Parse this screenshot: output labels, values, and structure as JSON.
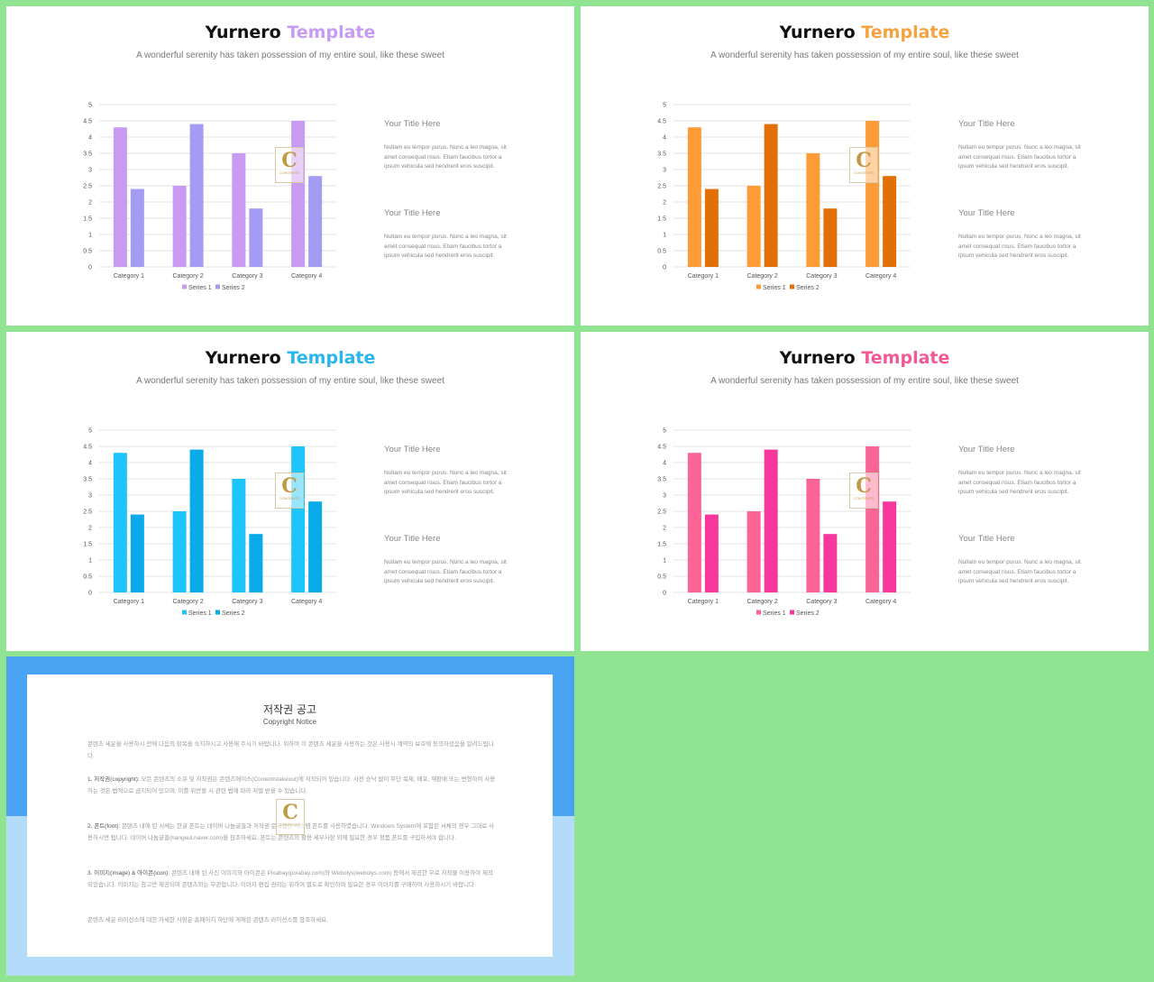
{
  "slides": [
    {
      "title_part1": "Yurnero",
      "title_part2": "Template",
      "accent": "#c99af2",
      "subtitle": "A wonderful serenity has taken possession of my entire soul, like these sweet",
      "series_colors": [
        "#c99af2",
        "#a49cf2"
      ],
      "side": [
        {
          "title": "Your Title Here",
          "body": "Nullam eu tempor purus. Nunc a leo magna, sit amet consequat risus. Etiam faucibus tortor a ipsum vehicula sed hendrerit eros suscipit."
        },
        {
          "title": "Your Title Here",
          "body": "Nullam eu tempor purus. Nunc a leo magna, sit amet consequat risus. Etiam faucibus tortor a ipsum vehicula sed hendrerit eros suscipit."
        }
      ]
    },
    {
      "title_part1": "Yurnero",
      "title_part2": "Template",
      "accent": "#f5a340",
      "subtitle": "A wonderful serenity has taken possession of my entire soul, like these sweet",
      "series_colors": [
        "#fd9c37",
        "#e27006"
      ],
      "side": [
        {
          "title": "Your Title Here",
          "body": "Nullam eu tempor purus. Nunc a leo magna, sit amet consequat risus. Etiam faucibus tortor a ipsum vehicula sed hendrerit eros suscipit."
        },
        {
          "title": "Your Title Here",
          "body": "Nullam eu tempor purus. Nunc a leo magna, sit amet consequat risus. Etiam faucibus tortor a ipsum vehicula sed hendrerit eros suscipit."
        }
      ]
    },
    {
      "title_part1": "Yurnero",
      "title_part2": "Template",
      "accent": "#29b6ec",
      "subtitle": "A wonderful serenity has taken possession of my entire soul, like these sweet",
      "series_colors": [
        "#1ec5fb",
        "#08aaea"
      ],
      "side": [
        {
          "title": "Your Title Here",
          "body": "Nullam eu tempor purus. Nunc a leo magna, sit amet consequat risus. Etiam faucibus tortor a ipsum vehicula sed hendrerit eros suscipit."
        },
        {
          "title": "Your Title Here",
          "body": "Nullam eu tempor purus. Nunc a leo magna, sit amet consequat risus. Etiam faucibus tortor a ipsum vehicula sed hendrerit eros suscipit."
        }
      ]
    },
    {
      "title_part1": "Yurnero",
      "title_part2": "Template",
      "accent": "#f25a97",
      "subtitle": "A wonderful serenity has taken possession of my entire soul, like these sweet",
      "series_colors": [
        "#fa6596",
        "#f8379c"
      ],
      "side": [
        {
          "title": "Your Title Here",
          "body": "Nullam eu tempor purus. Nunc a leo magna, sit amet consequat risus. Etiam faucibus tortor a ipsum vehicula sed hendrerit eros suscipit."
        },
        {
          "title": "Your Title Here",
          "body": "Nullam eu tempor purus. Nunc a leo magna, sit amet consequat risus. Etiam faucibus tortor a ipsum vehicula sed hendrerit eros suscipit."
        }
      ]
    }
  ],
  "watermark": {
    "letter": "C",
    "text": "CONTENTS"
  },
  "chart_data": {
    "type": "bar",
    "categories": [
      "Category 1",
      "Category 2",
      "Category 3",
      "Category 4"
    ],
    "series": [
      {
        "name": "Series 1",
        "values": [
          4.3,
          2.5,
          3.5,
          4.5
        ]
      },
      {
        "name": "Series 2",
        "values": [
          2.4,
          4.4,
          1.8,
          2.8
        ]
      }
    ],
    "y_ticks": [
      "0",
      "0.5",
      "1",
      "1.5",
      "2",
      "2.5",
      "3",
      "3.5",
      "4",
      "4.5",
      "5"
    ],
    "ylim": [
      0,
      5
    ],
    "grid": true,
    "legend": "bottom-center"
  },
  "copyright": {
    "title": "저작권 공고",
    "subtitle": "Copyright Notice",
    "intro": "콘텐츠 세운을 사용하시 전에 다음의 항목을 숙지하시고 사용해 주시기 바랍니다. 위하여 이 콘텐츠 세운을 사용하는 것은 사용시 계약의 보호에 동의하셨음을 알려드립니다.",
    "items": [
      {
        "head": "1. 저작권(copyright):",
        "text": "모든 콘텐츠의 소유 및 저작권은 콘텐츠에이스(Contentstakeout)에 저작되어 있습니다. 사전 승낙 없이 무단 복제, 배포, 재판매 또는 변형하여 사용하는 것은 법적으로 금지되어 있으며, 이를 위반할 시 관련 법에 따라 처벌 받을 수 있습니다."
      },
      {
        "head": "2. 폰트(font):",
        "text": "콘텐츠 내에 된 서체는 한글 폰트는 네이버 나눔글꼴과 저작권 문제없는 시스템 폰트를 사용하였습니다. Windows System에 포함된 서체의 경우 그대로 사용하시면 됩니다. 네이버 나눔글꼴(hangeul.naver.com)을 참조하세요. 폰트는 콘텐츠의 활용 세부사항 외에 필요한 경우 정품 폰트를 구입하셔야 합니다."
      },
      {
        "head": "3. 이미지(image) & 아이콘(icon):",
        "text": "콘텐츠 내에 된 사진 이미지와 아이콘은 Pixabay(pixabay.com)와 Webolys(webolys.com) 등에서 제공한 무료 저작물 이용하여 제작되었습니다. 이미지는 참고만 제공되며 콘텐츠와는 무관합니다. 이미지 편집 권리는 위하여 별도로 확인하여 필요한 경우 이미지를 구매하여 사용하시기 바랍니다."
      }
    ],
    "outro": "콘텐츠 세운 라이선스에 대한 자세한 사항은 홈페이지 하단에 게재된 콘텐츠 라이선스를 참조하세요."
  }
}
